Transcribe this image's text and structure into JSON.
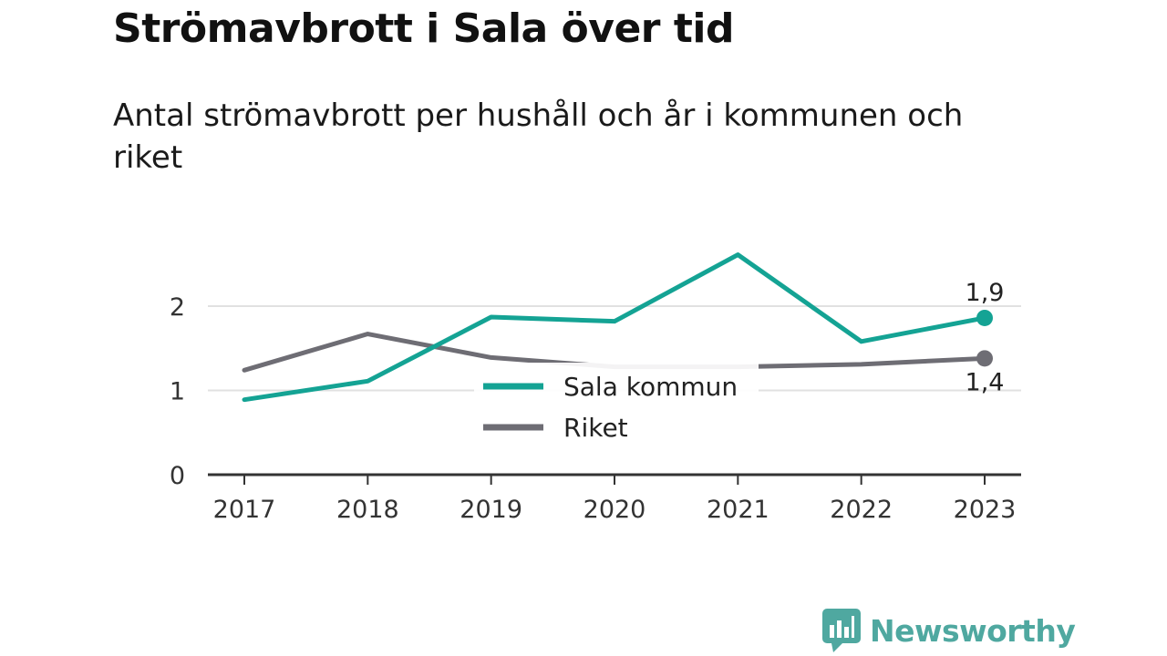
{
  "title": "Strömavbrott i Sala över tid",
  "subtitle": "Antal strömavbrott per hushåll och år i kommunen och riket",
  "brand": "Newsworthy",
  "colors": {
    "sala": "#14a394",
    "riket": "#6e6d74",
    "grid": "#e1e1e1",
    "axis": "#333333",
    "brand": "#4fa8a0"
  },
  "chart_data": {
    "type": "line",
    "title": "Strömavbrott i Sala över tid",
    "subtitle": "Antal strömavbrott per hushåll och år i kommunen och riket",
    "xlabel": "",
    "ylabel": "",
    "x": [
      "2017",
      "2018",
      "2019",
      "2020",
      "2021",
      "2022",
      "2023"
    ],
    "ylim": [
      0,
      2.7
    ],
    "yticks": [
      0,
      1,
      2
    ],
    "grid": true,
    "legend": "center",
    "series": [
      {
        "name": "Sala kommun",
        "color": "#14a394",
        "values": [
          0.89,
          1.11,
          1.87,
          1.82,
          2.61,
          1.58,
          1.86
        ],
        "end_label": "1,9"
      },
      {
        "name": "Riket",
        "color": "#6e6d74",
        "values": [
          1.24,
          1.67,
          1.39,
          1.28,
          1.28,
          1.31,
          1.38
        ],
        "end_label": "1,4"
      }
    ]
  }
}
